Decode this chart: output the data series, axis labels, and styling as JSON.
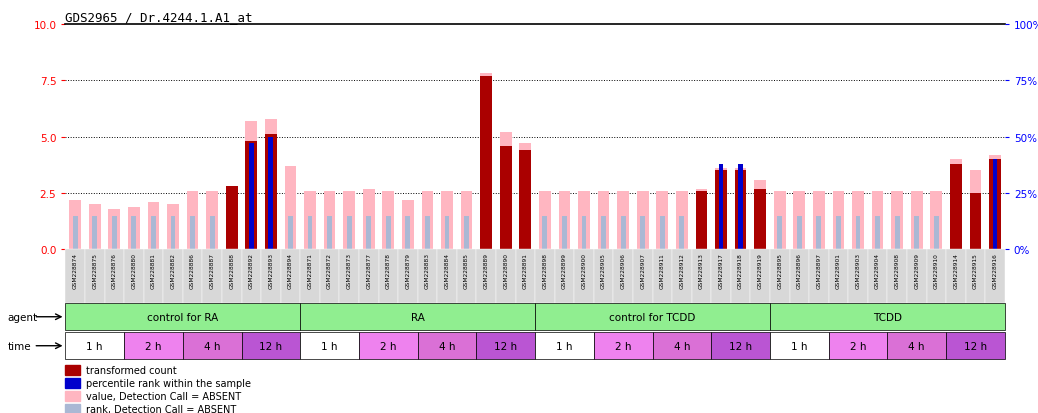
{
  "title": "GDS2965 / Dr.4244.1.A1_at",
  "ylim_left": [
    0,
    10
  ],
  "ylim_right": [
    0,
    100
  ],
  "yticks_left": [
    0,
    2.5,
    5.0,
    7.5,
    10
  ],
  "yticks_right": [
    0,
    25,
    50,
    75,
    100
  ],
  "gridlines": [
    2.5,
    5.0,
    7.5
  ],
  "samples": [
    "GSM228874",
    "GSM228875",
    "GSM228876",
    "GSM228880",
    "GSM228881",
    "GSM228882",
    "GSM228886",
    "GSM228887",
    "GSM228888",
    "GSM228892",
    "GSM228893",
    "GSM228894",
    "GSM228871",
    "GSM228872",
    "GSM228873",
    "GSM228877",
    "GSM228878",
    "GSM228879",
    "GSM228883",
    "GSM228884",
    "GSM228885",
    "GSM228889",
    "GSM228890",
    "GSM228891",
    "GSM228898",
    "GSM228899",
    "GSM228900",
    "GSM228905",
    "GSM228906",
    "GSM228907",
    "GSM228911",
    "GSM228912",
    "GSM228913",
    "GSM228917",
    "GSM228918",
    "GSM228919",
    "GSM228895",
    "GSM228896",
    "GSM228897",
    "GSM228901",
    "GSM228903",
    "GSM228904",
    "GSM228908",
    "GSM228909",
    "GSM228910",
    "GSM228914",
    "GSM228915",
    "GSM228916"
  ],
  "value_absent": [
    2.2,
    2.0,
    1.8,
    1.9,
    2.1,
    2.0,
    2.6,
    2.6,
    2.8,
    5.7,
    5.8,
    3.7,
    2.6,
    2.6,
    2.6,
    2.7,
    2.6,
    2.2,
    2.6,
    2.6,
    2.6,
    7.8,
    5.2,
    4.7,
    2.6,
    2.6,
    2.6,
    2.6,
    2.6,
    2.6,
    2.6,
    2.6,
    2.7,
    3.6,
    3.6,
    3.1,
    2.6,
    2.6,
    2.6,
    2.6,
    2.6,
    2.6,
    2.6,
    2.6,
    2.6,
    4.0,
    3.5,
    4.2
  ],
  "rank_absent": [
    1.5,
    1.5,
    1.5,
    1.5,
    1.5,
    1.5,
    1.5,
    1.5,
    1.5,
    1.5,
    1.5,
    1.5,
    1.5,
    1.5,
    1.5,
    1.5,
    1.5,
    1.5,
    1.5,
    1.5,
    1.5,
    1.5,
    1.5,
    1.5,
    1.5,
    1.5,
    1.5,
    1.5,
    1.5,
    1.5,
    1.5,
    1.5,
    1.5,
    1.5,
    1.5,
    1.5,
    1.5,
    1.5,
    1.5,
    1.5,
    1.5,
    1.5,
    1.5,
    1.5,
    1.5,
    1.5,
    1.5,
    1.5
  ],
  "transformed_count": [
    0,
    0,
    0,
    0,
    0,
    0,
    0,
    0,
    2.8,
    4.8,
    5.1,
    0,
    0,
    0,
    0,
    0,
    0,
    0,
    0,
    0,
    0,
    7.7,
    4.6,
    4.4,
    0,
    0,
    0,
    0,
    0,
    0,
    0,
    0,
    2.6,
    3.5,
    3.5,
    2.7,
    0,
    0,
    0,
    0,
    0,
    0,
    0,
    0,
    0,
    3.8,
    2.5,
    4.0
  ],
  "percentile_rank": [
    0,
    0,
    0,
    0,
    0,
    0,
    0,
    0,
    0,
    47,
    50,
    0,
    0,
    0,
    0,
    0,
    0,
    0,
    0,
    0,
    0,
    0,
    0,
    0,
    0,
    0,
    0,
    0,
    0,
    0,
    0,
    0,
    0,
    38,
    38,
    0,
    0,
    0,
    0,
    0,
    0,
    0,
    0,
    0,
    0,
    0,
    0,
    40
  ],
  "agent_groups": [
    {
      "label": "control for RA",
      "start": 0,
      "end": 12,
      "color": "#90ee90"
    },
    {
      "label": "RA",
      "start": 12,
      "end": 24,
      "color": "#90ee90"
    },
    {
      "label": "control for TCDD",
      "start": 24,
      "end": 36,
      "color": "#90ee90"
    },
    {
      "label": "TCDD",
      "start": 36,
      "end": 48,
      "color": "#90ee90"
    }
  ],
  "time_groups": [
    {
      "label": "1 h",
      "start": 0,
      "end": 3,
      "color": "#ffffff"
    },
    {
      "label": "2 h",
      "start": 3,
      "end": 6,
      "color": "#ee82ee"
    },
    {
      "label": "4 h",
      "start": 6,
      "end": 9,
      "color": "#da70d6"
    },
    {
      "label": "12 h",
      "start": 9,
      "end": 12,
      "color": "#ba55d3"
    },
    {
      "label": "1 h",
      "start": 12,
      "end": 15,
      "color": "#ffffff"
    },
    {
      "label": "2 h",
      "start": 15,
      "end": 18,
      "color": "#ee82ee"
    },
    {
      "label": "4 h",
      "start": 18,
      "end": 21,
      "color": "#da70d6"
    },
    {
      "label": "12 h",
      "start": 21,
      "end": 24,
      "color": "#ba55d3"
    },
    {
      "label": "1 h",
      "start": 24,
      "end": 27,
      "color": "#ffffff"
    },
    {
      "label": "2 h",
      "start": 27,
      "end": 30,
      "color": "#ee82ee"
    },
    {
      "label": "4 h",
      "start": 30,
      "end": 33,
      "color": "#da70d6"
    },
    {
      "label": "12 h",
      "start": 33,
      "end": 36,
      "color": "#ba55d3"
    },
    {
      "label": "1 h",
      "start": 36,
      "end": 39,
      "color": "#ffffff"
    },
    {
      "label": "2 h",
      "start": 39,
      "end": 42,
      "color": "#ee82ee"
    },
    {
      "label": "4 h",
      "start": 42,
      "end": 45,
      "color": "#da70d6"
    },
    {
      "label": "12 h",
      "start": 45,
      "end": 48,
      "color": "#ba55d3"
    }
  ],
  "color_value_absent": "#ffb6c1",
  "color_rank_absent": "#aab8d4",
  "color_transformed": "#aa0000",
  "color_percentile": "#0000cc",
  "bar_width": 0.6,
  "rank_bar_width": 0.25,
  "background_chart": "#ffffff",
  "legend_items": [
    {
      "color": "#aa0000",
      "label": "transformed count"
    },
    {
      "color": "#0000cc",
      "label": "percentile rank within the sample"
    },
    {
      "color": "#ffb6c1",
      "label": "value, Detection Call = ABSENT"
    },
    {
      "color": "#aab8d4",
      "label": "rank, Detection Call = ABSENT"
    }
  ]
}
